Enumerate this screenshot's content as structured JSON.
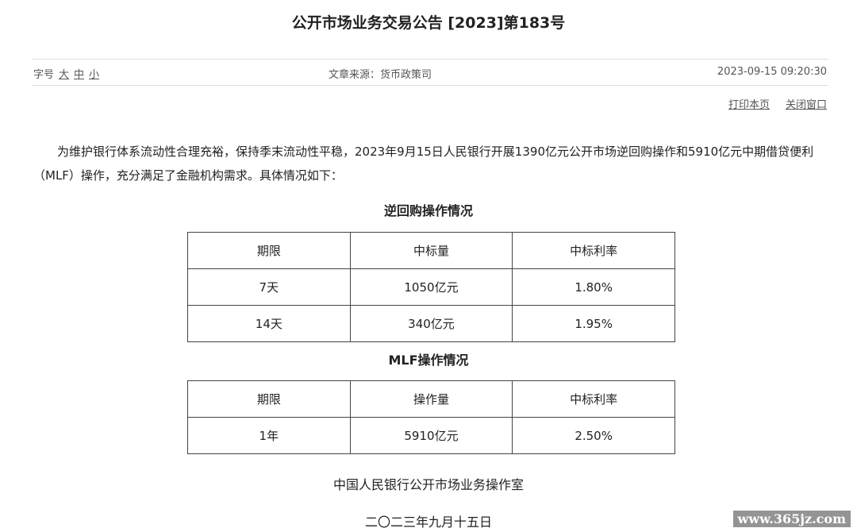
{
  "header": {
    "title": "公开市场业务交易公告 [2023]第183号"
  },
  "toolbar": {
    "font_size_label": "字号",
    "font_sizes": [
      "大",
      "中",
      "小"
    ],
    "source": "文章来源：货币政策司",
    "datetime": "2023-09-15 09:20:30",
    "actions": [
      "打印本页",
      "关闭窗口"
    ]
  },
  "body": {
    "paragraph": "为维护银行体系流动性合理充裕，保持季末流动性平稳，2023年9月15日人民银行开展1390亿元公开市场逆回购操作和5910亿元中期借贷便利（MLF）操作，充分满足了金融机构需求。具体情况如下：",
    "tables": [
      {
        "title": "逆回购操作情况",
        "columns": [
          "期限",
          "中标量",
          "中标利率"
        ],
        "rows": [
          [
            "7天",
            "1050亿元",
            "1.80%"
          ],
          [
            "14天",
            "340亿元",
            "1.95%"
          ]
        ]
      },
      {
        "title": "MLF操作情况",
        "columns": [
          "期限",
          "操作量",
          "中标利率"
        ],
        "rows": [
          [
            "1年",
            "5910亿元",
            "2.50%"
          ]
        ]
      }
    ],
    "signature": "中国人民银行公开市场业务操作室",
    "date": "二〇二三年九月十五日"
  },
  "watermark": "www.365jz.com"
}
